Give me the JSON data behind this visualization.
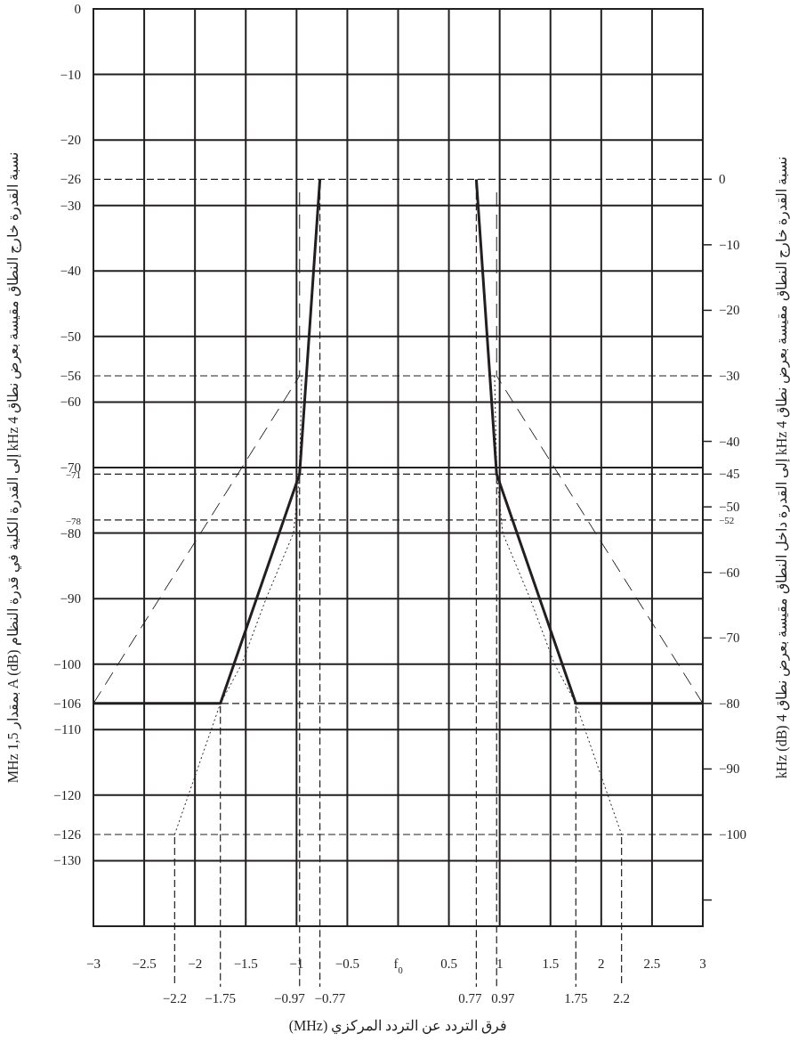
{
  "chart_data": {
    "type": "line",
    "xlabel": "فرق التردد عن التردد المركزي (MHz)",
    "ylabel": "نسبة القدرة خارج النطاق مقيسة بعرض نطاق 4 kHz إلى القدرة الكلية في قدرة النظام A (dB) بمقدار 1,5 MHz",
    "y2label": "نسبة القدرة خارج النطاق مقيسة بعرض نطاق 4 kHz إلى القدرة داخل النطاق مقيسة بعرض نطاق 4 kHz (dB)",
    "xlim": [
      -3,
      3
    ],
    "xticks": [
      {
        "value": -3,
        "label": "−3"
      },
      {
        "value": -2.5,
        "label": "−2.5"
      },
      {
        "value": -2,
        "label": "−2"
      },
      {
        "value": -1.5,
        "label": "−1.5"
      },
      {
        "value": -1,
        "label": "−1"
      },
      {
        "value": -0.5,
        "label": "−0.5"
      },
      {
        "value": 0,
        "label": "f$_{0}$"
      },
      0.5,
      1,
      1.5,
      2,
      2.5,
      3
    ],
    "ylim": [
      -140,
      0
    ],
    "yticks": [
      0,
      {
        "value": -10,
        "label": "−10"
      },
      {
        "value": -20,
        "label": "−20"
      },
      {
        "value": -26,
        "label": "−26"
      },
      {
        "value": -30,
        "label": "−30"
      },
      {
        "value": -40,
        "label": "−40"
      },
      {
        "value": -50,
        "label": "−50"
      },
      {
        "value": -56,
        "label": "−56"
      },
      {
        "value": -60,
        "label": "−60"
      },
      {
        "value": -70,
        "label": "−70"
      },
      {
        "value": -71,
        "label": "−71"
      },
      {
        "value": -78,
        "label": "−78"
      },
      {
        "value": -80,
        "label": "−80"
      },
      {
        "value": -90,
        "label": "−90"
      },
      {
        "value": -100,
        "label": "−100"
      },
      {
        "value": -106,
        "label": "−106"
      },
      {
        "value": -110,
        "label": "−110"
      },
      {
        "value": -120,
        "label": "−120"
      },
      {
        "value": -126,
        "label": "−126"
      },
      {
        "value": -130,
        "label": "−130"
      }
    ],
    "y2lim": [
      -114,
      26
    ],
    "y2ticks": [
      0,
      {
        "value": -10,
        "label": "−10"
      },
      {
        "value": -20,
        "label": "−20"
      },
      {
        "value": -30,
        "label": "−30"
      },
      {
        "value": -40,
        "label": "−40"
      },
      {
        "value": -45,
        "label": "−45"
      },
      {
        "value": -50,
        "label": "−50"
      },
      {
        "value": -52,
        "label": "−52"
      },
      {
        "value": -60,
        "label": "−60"
      },
      {
        "value": -70,
        "label": "−70"
      },
      {
        "value": -80,
        "label": "−80"
      },
      {
        "value": -90,
        "label": "−90"
      },
      {
        "value": -100,
        "label": "−100"
      },
      {
        "value": -110,
        "label": null
      }
    ],
    "grid": true,
    "series": [
      {
        "color": "#231f20",
        "line_style": "solid",
        "x": [
          -3,
          -1.75,
          -0.97,
          -0.77,
          0,
          0.77,
          0.97,
          1.75,
          3
        ],
        "values": [
          -106,
          -106,
          -71,
          -26,
          null,
          -26,
          -71,
          -106,
          -106
        ]
      },
      {
        "color": "#231f20",
        "line_style": "dashed",
        "x": [
          -3,
          -0.97,
          -0.97,
          0,
          0.97,
          0.97,
          3
        ],
        "values": [
          -106,
          -56,
          -28,
          null,
          -28,
          -56,
          -106
        ]
      },
      {
        "color": "#231f20",
        "line_style": "dotted",
        "x": [
          -2.2,
          -1.75,
          -1.54,
          -1.3,
          -1.03,
          -0.97,
          -0.95,
          0,
          0.95,
          0.97,
          1.03,
          1.3,
          1.54,
          1.75,
          2.2
        ],
        "values": [
          -126,
          -106,
          -100,
          -90,
          -80,
          -71,
          -56,
          null,
          -56,
          -71,
          -80,
          -90,
          -100,
          -106,
          -126
        ]
      }
    ],
    "ref_lines": [
      {
        "axis": "x",
        "value": -2.2,
        "label": "−2.2"
      },
      {
        "axis": "x",
        "value": -1.75,
        "label": "−1.75"
      },
      {
        "axis": "x",
        "value": -0.97,
        "label": "−0.97"
      },
      {
        "axis": "x",
        "value": -0.77,
        "label": "−0.77"
      },
      {
        "axis": "x",
        "value": 0.77,
        "label": "0.77"
      },
      {
        "axis": "x",
        "value": 0.97,
        "label": "0.97"
      },
      {
        "axis": "x",
        "value": 1.75,
        "label": "1.75"
      },
      {
        "axis": "x",
        "value": 2.2,
        "label": "2.2"
      }
    ]
  }
}
